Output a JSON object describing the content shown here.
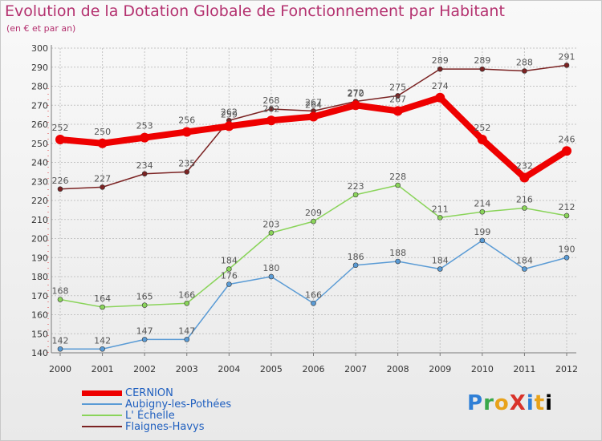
{
  "page": {
    "title": "Evolution de la Dotation Globale de Fonctionnement par Habitant",
    "subtitle": "(en € et par an)",
    "logo": "ProXiti"
  },
  "colors": {
    "title": "#b4316f",
    "grid": "#c4c4c4",
    "axis": "#7a7a7a",
    "tick_text": "#333333",
    "label_text": "#555555"
  },
  "chart_data": {
    "type": "line",
    "title": "Evolution de la Dotation Globale de Fonctionnement par Habitant",
    "subtitle": "(en € et par an)",
    "xlabel": "",
    "ylabel": "",
    "ylim": [
      140,
      300
    ],
    "ystep": 10,
    "grid": true,
    "legend": "bottom-left",
    "x": [
      "2000",
      "2001",
      "2002",
      "2003",
      "2004",
      "2005",
      "2006",
      "2007",
      "2008",
      "2009",
      "2010",
      "2011",
      "2012"
    ],
    "series": [
      {
        "name": "Flaignes-Havys",
        "color": "#7b2323",
        "values": [
          226,
          227,
          234,
          235,
          262,
          268,
          267,
          272,
          275,
          289,
          289,
          288,
          291
        ]
      },
      {
        "name": "L' Échelle",
        "color": "#8ad45a",
        "values": [
          168,
          164,
          165,
          166,
          184,
          203,
          209,
          223,
          228,
          211,
          214,
          216,
          212
        ]
      },
      {
        "name": "Aubigny-les-Pothées",
        "color": "#5a9bd5",
        "values": [
          142,
          142,
          147,
          147,
          176,
          180,
          166,
          186,
          188,
          184,
          199,
          184,
          190
        ]
      },
      {
        "name": "CERNION",
        "color": "#ee0000",
        "values": [
          252,
          250,
          253,
          256,
          259,
          262,
          264,
          270,
          267,
          274,
          252,
          232,
          246
        ]
      }
    ],
    "legend_order": [
      "CERNION",
      "Aubigny-les-Pothées",
      "L' Échelle",
      "Flaignes-Havys"
    ]
  }
}
